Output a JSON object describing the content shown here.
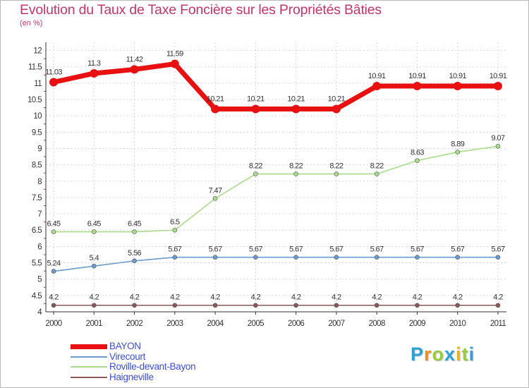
{
  "title": "Evolution du Taux de Taxe Foncière sur les Propriétés Bâties",
  "unit_label": "(en %)",
  "logo": {
    "letters": [
      "P",
      "r",
      "o",
      "x",
      "i",
      "t",
      "i"
    ],
    "colors": [
      "#2f9fd8",
      "#f08c1a",
      "#9acb3c",
      "#2f9fd8",
      "#e8b41a",
      "#9acb3c",
      "#2f9fd8"
    ]
  },
  "chart_data": {
    "type": "line",
    "title": "Evolution du Taux de Taxe Foncière sur les Propriétés Bâties",
    "ylabel": "(en %)",
    "xlabel": "",
    "categories": [
      "2000",
      "2001",
      "2002",
      "2003",
      "2004",
      "2005",
      "2006",
      "2007",
      "2008",
      "2009",
      "2010",
      "2011"
    ],
    "ylim": [
      4,
      12.25
    ],
    "yticks": [
      "4",
      "4.5",
      "5",
      "5.5",
      "6",
      "6.5",
      "7",
      "7.5",
      "8",
      "8.5",
      "9",
      "9.5",
      "10",
      "10.5",
      "11",
      "11.5",
      "12"
    ],
    "series": [
      {
        "name": "BAYON",
        "color": "#e81010",
        "values": [
          11.03,
          11.3,
          11.42,
          11.59,
          10.21,
          10.21,
          10.21,
          10.21,
          10.91,
          10.91,
          10.91,
          10.91
        ],
        "labels": [
          "11.03",
          "11.3",
          "11.42",
          "11.59",
          "10.21",
          "10.21",
          "10.21",
          "10.21",
          "10.91",
          "10.91",
          "10.91",
          "10.91"
        ]
      },
      {
        "name": "Virecourt",
        "color": "#6a9ccf",
        "values": [
          5.24,
          5.4,
          5.56,
          5.67,
          5.67,
          5.67,
          5.67,
          5.67,
          5.67,
          5.67,
          5.67,
          5.67
        ],
        "labels": [
          "5.24",
          "5.4",
          "5.56",
          "5.67",
          "5.67",
          "5.67",
          "5.67",
          "5.67",
          "5.67",
          "5.67",
          "5.67",
          "5.67"
        ]
      },
      {
        "name": "Roville-devant-Bayon",
        "color": "#a9dc8a",
        "values": [
          6.45,
          6.45,
          6.45,
          6.5,
          7.47,
          8.22,
          8.22,
          8.22,
          8.22,
          8.63,
          8.89,
          9.07
        ],
        "labels": [
          "6.45",
          "6.45",
          "6.45",
          "6.5",
          "7.47",
          "8.22",
          "8.22",
          "8.22",
          "8.22",
          "8.63",
          "8.89",
          "9.07"
        ]
      },
      {
        "name": "Haigneville",
        "color": "#8a5858",
        "values": [
          4.2,
          4.2,
          4.2,
          4.2,
          4.2,
          4.2,
          4.2,
          4.2,
          4.2,
          4.2,
          4.2,
          4.2
        ],
        "labels": [
          "4.2",
          "4.2",
          "4.2",
          "4.2",
          "4.2",
          "4.2",
          "4.2",
          "4.2",
          "4.2",
          "4.2",
          "4.2",
          "4.2"
        ]
      }
    ],
    "legend": "bottom-left"
  }
}
